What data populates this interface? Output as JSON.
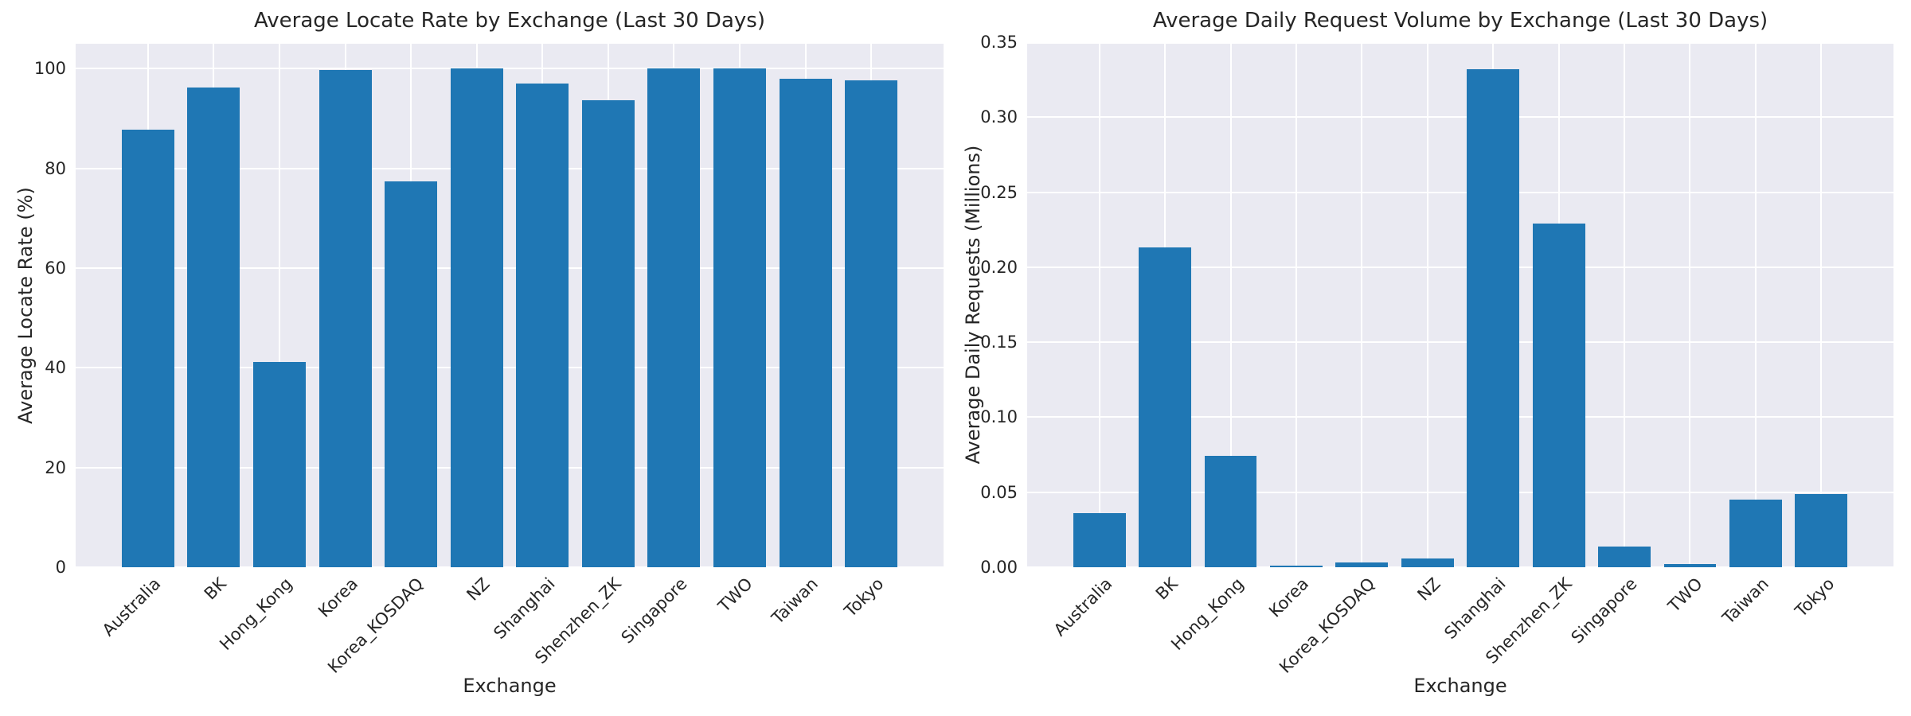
{
  "style": {
    "bar_color": "#1f77b4",
    "plot_bg": "#eaeaf2",
    "grid_color": "#ffffff",
    "text_color": "#262626"
  },
  "chart_data": [
    {
      "type": "bar",
      "title": "Average Locate Rate by Exchange (Last 30 Days)",
      "xlabel": "Exchange",
      "ylabel": "Average Locate Rate (%)",
      "categories": [
        "Australia",
        "BK",
        "Hong_Kong",
        "Korea",
        "Korea_KOSDAQ",
        "NZ",
        "Shanghai",
        "Shenzhen_ZK",
        "Singapore",
        "TWO",
        "Taiwan",
        "Tokyo"
      ],
      "values": [
        87.8,
        96.3,
        41.2,
        99.8,
        77.4,
        100.0,
        97.1,
        93.6,
        100.0,
        100.0,
        98.0,
        97.6
      ],
      "ylim": [
        0,
        105
      ],
      "yticks": [
        0,
        20,
        40,
        60,
        80,
        100
      ],
      "ytick_labels": [
        "0",
        "20",
        "40",
        "60",
        "80",
        "100"
      ],
      "grid": true,
      "legend": null
    },
    {
      "type": "bar",
      "title": "Average Daily Request Volume by Exchange (Last 30 Days)",
      "xlabel": "Exchange",
      "ylabel": "Average Daily Requests (Millions)",
      "categories": [
        "Australia",
        "BK",
        "Hong_Kong",
        "Korea",
        "Korea_KOSDAQ",
        "NZ",
        "Shanghai",
        "Shenzhen_ZK",
        "Singapore",
        "TWO",
        "Taiwan",
        "Tokyo"
      ],
      "values": [
        0.036,
        0.213,
        0.074,
        0.001,
        0.003,
        0.006,
        0.332,
        0.229,
        0.014,
        0.002,
        0.045,
        0.049
      ],
      "ylim": [
        0,
        0.35
      ],
      "yticks": [
        0,
        0.05,
        0.1,
        0.15,
        0.2,
        0.25,
        0.3,
        0.35
      ],
      "ytick_labels": [
        "0.00",
        "0.05",
        "0.10",
        "0.15",
        "0.20",
        "0.25",
        "0.30",
        "0.35"
      ],
      "grid": true,
      "legend": null
    }
  ]
}
